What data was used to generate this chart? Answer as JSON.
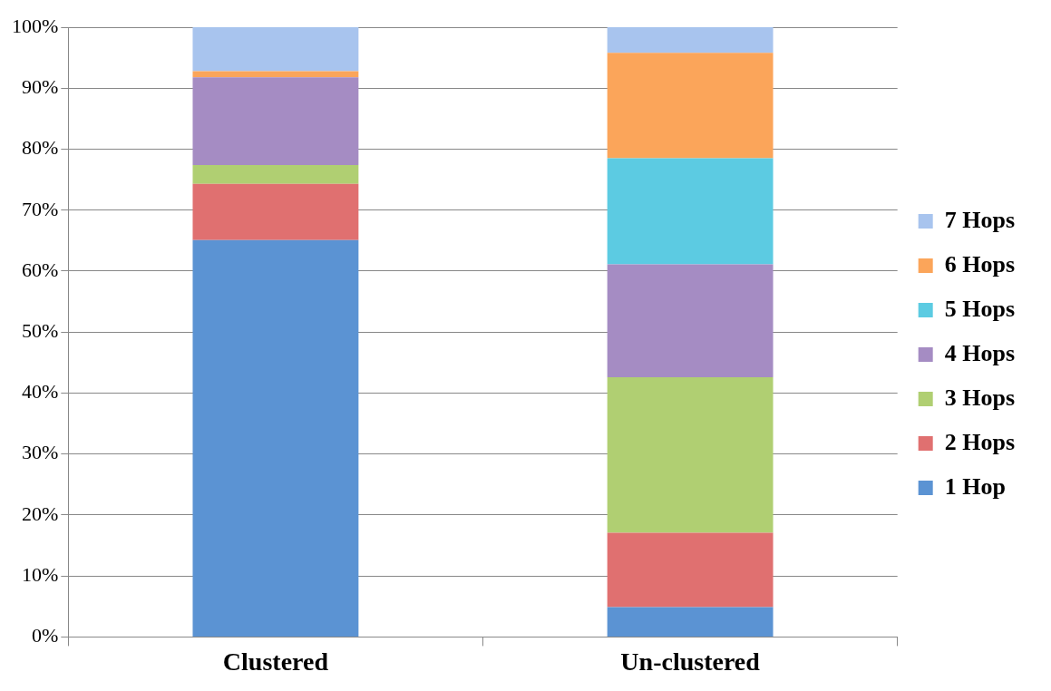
{
  "chart_data": {
    "type": "bar",
    "stacked": true,
    "categories": [
      "Clustered",
      "Un-clustered"
    ],
    "series": [
      {
        "name": "1 Hop",
        "color": "#5b93d3",
        "values": [
          65.1,
          4.9
        ]
      },
      {
        "name": "2 Hops",
        "color": "#e07070",
        "values": [
          9.2,
          12.2
        ]
      },
      {
        "name": "3 Hops",
        "color": "#b0cf72",
        "values": [
          3.1,
          25.5
        ]
      },
      {
        "name": "4 Hops",
        "color": "#a58cc3",
        "values": [
          14.4,
          18.5
        ]
      },
      {
        "name": "5 Hops",
        "color": "#5ccbe2",
        "values": [
          0,
          17.4
        ]
      },
      {
        "name": "6 Hops",
        "color": "#fba55a",
        "values": [
          1,
          17.3
        ]
      },
      {
        "name": "7 Hops",
        "color": "#a8c4ee",
        "values": [
          7.2,
          4.2
        ]
      }
    ],
    "ylim": [
      0,
      100
    ],
    "yticks": [
      {
        "value": 0,
        "label": "0%"
      },
      {
        "value": 10,
        "label": "10%"
      },
      {
        "value": 20,
        "label": "20%"
      },
      {
        "value": 30,
        "label": "30%"
      },
      {
        "value": 40,
        "label": "40%"
      },
      {
        "value": 50,
        "label": "50%"
      },
      {
        "value": 60,
        "label": "60%"
      },
      {
        "value": 70,
        "label": "70%"
      },
      {
        "value": 80,
        "label": "80%"
      },
      {
        "value": 90,
        "label": "90%"
      },
      {
        "value": 100,
        "label": "100%"
      }
    ],
    "grid": "y",
    "legend": "right"
  }
}
